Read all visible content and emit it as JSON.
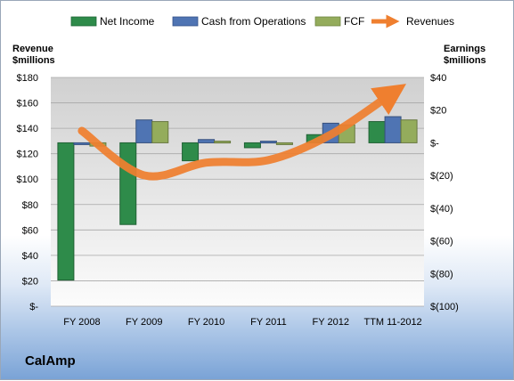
{
  "company": "CalAmp",
  "chart_data": {
    "type": "bar",
    "categories": [
      "FY 2008",
      "FY 2009",
      "FY 2010",
      "FY 2011",
      "FY 2012",
      "TTM 11-2012"
    ],
    "left_axis": {
      "label_line1": "Revenue",
      "label_line2": "$millions",
      "ylim": [
        0,
        180
      ],
      "ticks": [
        0,
        20,
        40,
        60,
        80,
        100,
        120,
        140,
        160,
        180
      ],
      "tick_labels": [
        "$-",
        "$20",
        "$40",
        "$60",
        "$80",
        "$100",
        "$120",
        "$140",
        "$160",
        "$180"
      ]
    },
    "right_axis": {
      "label_line1": "Earnings",
      "label_line2": "$millions",
      "ylim": [
        -100,
        40
      ],
      "ticks": [
        -100,
        -80,
        -60,
        -40,
        -20,
        0,
        20,
        40
      ],
      "tick_labels": [
        "$(100)",
        "$(80)",
        "$(60)",
        "$(40)",
        "$(20)",
        "$-",
        "$20",
        "$40"
      ]
    },
    "series": [
      {
        "name": "Net Income",
        "kind": "bar",
        "axis": "right",
        "color": "#2e8b4a",
        "values": [
          -84,
          -50,
          -11,
          -3,
          5,
          13
        ]
      },
      {
        "name": "Cash from Operations",
        "kind": "bar",
        "axis": "right",
        "color": "#4f74b3",
        "values": [
          -1,
          14,
          2,
          1,
          12,
          16
        ]
      },
      {
        "name": "FCF",
        "kind": "bar",
        "axis": "right",
        "color": "#94ac5c",
        "values": [
          -2,
          13,
          1,
          0,
          11,
          14
        ]
      },
      {
        "name": "Revenues",
        "kind": "line",
        "axis": "left",
        "color": "#ef7f2f",
        "values": [
          138,
          103,
          113,
          115,
          135,
          168
        ]
      }
    ],
    "grid": true,
    "legend_position": "top"
  }
}
